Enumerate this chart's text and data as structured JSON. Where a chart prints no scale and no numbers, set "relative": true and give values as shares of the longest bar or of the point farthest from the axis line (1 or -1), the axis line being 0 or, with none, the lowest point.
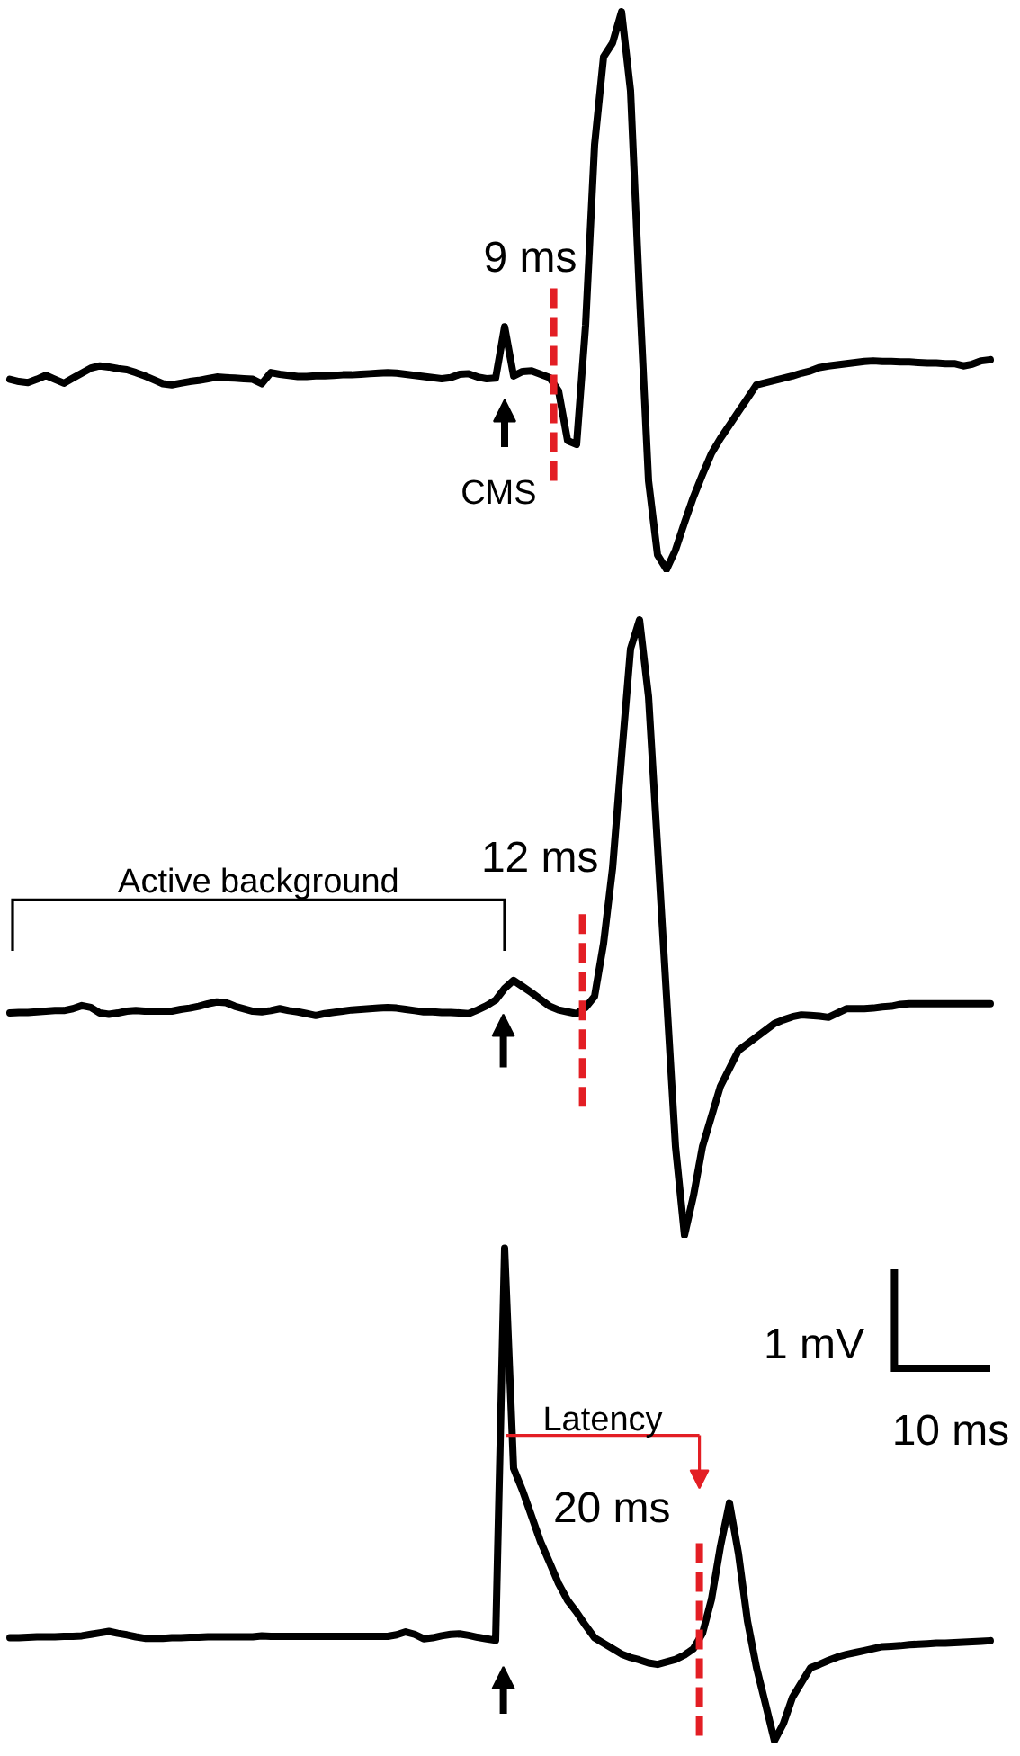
{
  "chart_data": [
    {
      "type": "line",
      "relative": true,
      "color": "#000000",
      "categories": [
        null,
        null,
        null,
        null,
        null,
        null,
        null,
        null,
        null,
        null,
        null,
        null,
        null,
        null,
        null,
        null,
        null,
        null,
        null,
        null,
        null,
        null,
        null,
        null,
        null,
        null,
        null,
        null,
        null,
        null,
        null,
        null,
        null,
        null,
        null,
        null,
        null,
        null,
        null,
        null,
        null,
        null,
        null,
        null,
        null,
        null,
        null,
        null,
        null,
        null,
        null,
        null,
        null,
        null,
        null,
        null,
        null,
        null,
        null,
        null,
        null,
        null,
        null,
        null,
        null,
        null,
        null,
        null,
        null,
        null,
        null,
        null,
        null,
        null,
        null,
        null,
        null,
        null,
        null,
        null,
        null,
        null,
        null,
        null,
        null,
        null,
        null,
        null,
        null,
        null,
        null,
        null,
        null,
        null,
        null,
        null,
        null,
        null,
        null,
        null,
        null,
        null,
        null,
        null,
        null,
        null,
        null,
        null,
        null,
        null
      ],
      "values": [
        0.341,
        0.337,
        0.335,
        0.341,
        0.348,
        0.341,
        0.334,
        0.343,
        0.352,
        0.361,
        0.365,
        0.363,
        0.36,
        0.358,
        0.353,
        0.347,
        0.34,
        0.333,
        0.331,
        0.334,
        0.337,
        0.339,
        0.342,
        0.345,
        0.344,
        0.343,
        0.342,
        0.341,
        0.333,
        0.353,
        0.35,
        0.348,
        0.346,
        0.346,
        0.347,
        0.347,
        0.348,
        0.349,
        0.349,
        0.35,
        0.351,
        0.352,
        0.353,
        0.352,
        0.35,
        0.348,
        0.346,
        0.344,
        0.342,
        0.344,
        0.35,
        0.351,
        0.345,
        0.342,
        0.343,
        0.435,
        0.347,
        0.355,
        0.356,
        0.35,
        0.344,
        0.32,
        0.231,
        0.224,
        0.437,
        0.761,
        0.919,
        0.944,
        1.0,
        0.858,
        0.492,
        0.159,
        0.026,
        0.0,
        0.035,
        0.084,
        0.13,
        0.17,
        0.208,
        0.235,
        0.259,
        0.283,
        0.307,
        0.331,
        0.335,
        0.339,
        0.343,
        0.347,
        0.352,
        0.356,
        0.362,
        0.365,
        0.367,
        0.369,
        0.371,
        0.373,
        0.374,
        0.373,
        0.373,
        0.372,
        0.372,
        0.371,
        0.37,
        0.37,
        0.369,
        0.369,
        0.365,
        0.368,
        0.374,
        0.376
      ],
      "annotations": [
        "CMS"
      ],
      "ref_lines": [
        {
          "axis": "x",
          "label": "9 ms",
          "color": "#e31e24",
          "line_style": "dashed"
        }
      ]
    },
    {
      "type": "line",
      "relative": true,
      "color": "#000000",
      "categories": [
        null,
        null,
        null,
        null,
        null,
        null,
        null,
        null,
        null,
        null,
        null,
        null,
        null,
        null,
        null,
        null,
        null,
        null,
        null,
        null,
        null,
        null,
        null,
        null,
        null,
        null,
        null,
        null,
        null,
        null,
        null,
        null,
        null,
        null,
        null,
        null,
        null,
        null,
        null,
        null,
        null,
        null,
        null,
        null,
        null,
        null,
        null,
        null,
        null,
        null,
        null,
        null,
        null,
        null,
        null,
        null,
        null,
        null,
        null,
        null,
        null,
        null,
        null,
        null,
        null,
        null,
        null,
        null,
        null,
        null,
        null,
        null,
        null,
        null,
        null,
        null,
        null,
        null,
        null,
        null,
        null,
        null,
        null,
        null,
        null,
        null,
        null,
        null,
        null,
        null,
        null,
        null,
        null,
        null,
        null,
        null,
        null,
        null,
        null,
        null,
        null,
        null,
        null,
        null,
        null,
        null,
        null,
        null,
        null,
        null
      ],
      "values": [
        0.361,
        0.362,
        0.362,
        0.363,
        0.364,
        0.365,
        0.365,
        0.368,
        0.373,
        0.37,
        0.361,
        0.359,
        0.361,
        0.364,
        0.365,
        0.364,
        0.364,
        0.364,
        0.364,
        0.367,
        0.369,
        0.372,
        0.376,
        0.379,
        0.378,
        0.372,
        0.368,
        0.364,
        0.363,
        0.365,
        0.368,
        0.365,
        0.363,
        0.36,
        0.357,
        0.36,
        0.362,
        0.364,
        0.366,
        0.367,
        0.368,
        0.369,
        0.37,
        0.369,
        0.367,
        0.365,
        0.363,
        0.363,
        0.362,
        0.362,
        0.361,
        0.36,
        0.366,
        0.373,
        0.382,
        0.401,
        0.414,
        0.404,
        0.394,
        0.383,
        0.372,
        0.366,
        0.363,
        0.36,
        0.37,
        0.388,
        0.474,
        0.596,
        0.778,
        0.953,
        1.0,
        0.875,
        0.632,
        0.388,
        0.144,
        0.0,
        0.064,
        0.144,
        0.193,
        0.242,
        0.271,
        0.3,
        0.311,
        0.322,
        0.333,
        0.344,
        0.35,
        0.355,
        0.358,
        0.357,
        0.356,
        0.354,
        0.361,
        0.368,
        0.368,
        0.368,
        0.369,
        0.371,
        0.372,
        0.375,
        0.376,
        0.376,
        0.376,
        0.376,
        0.376,
        0.376,
        0.376,
        0.376,
        0.376,
        0.376
      ],
      "annotations": [
        "Active background"
      ],
      "ref_lines": [
        {
          "axis": "x",
          "label": "12 ms",
          "color": "#e31e24",
          "line_style": "dashed"
        }
      ]
    },
    {
      "type": "line",
      "relative": true,
      "color": "#000000",
      "categories": [
        null,
        null,
        null,
        null,
        null,
        null,
        null,
        null,
        null,
        null,
        null,
        null,
        null,
        null,
        null,
        null,
        null,
        null,
        null,
        null,
        null,
        null,
        null,
        null,
        null,
        null,
        null,
        null,
        null,
        null,
        null,
        null,
        null,
        null,
        null,
        null,
        null,
        null,
        null,
        null,
        null,
        null,
        null,
        null,
        null,
        null,
        null,
        null,
        null,
        null,
        null,
        null,
        null,
        null,
        null,
        null,
        null,
        null,
        null,
        null,
        null,
        null,
        null,
        null,
        null,
        null,
        null,
        null,
        null,
        null,
        null,
        null,
        null,
        null,
        null,
        null,
        null,
        null,
        null,
        null,
        null,
        null,
        null,
        null,
        null,
        null,
        null,
        null,
        null,
        null,
        null,
        null,
        null,
        null,
        null,
        null,
        null,
        null,
        null,
        null,
        null,
        null,
        null,
        null,
        null,
        null,
        null,
        null,
        null,
        null
      ],
      "values": [
        0.209,
        0.209,
        0.21,
        0.211,
        0.211,
        0.211,
        0.212,
        0.212,
        0.213,
        0.216,
        0.219,
        0.222,
        0.218,
        0.215,
        0.211,
        0.208,
        0.208,
        0.208,
        0.209,
        0.209,
        0.21,
        0.21,
        0.211,
        0.211,
        0.211,
        0.211,
        0.211,
        0.211,
        0.213,
        0.212,
        0.212,
        0.212,
        0.212,
        0.212,
        0.212,
        0.212,
        0.212,
        0.212,
        0.212,
        0.212,
        0.212,
        0.212,
        0.212,
        0.215,
        0.221,
        0.216,
        0.207,
        0.209,
        0.213,
        0.216,
        0.217,
        0.214,
        0.21,
        0.207,
        0.204,
        1.0,
        0.553,
        0.508,
        0.456,
        0.404,
        0.362,
        0.319,
        0.285,
        0.261,
        0.234,
        0.209,
        0.198,
        0.187,
        0.176,
        0.169,
        0.164,
        0.158,
        0.155,
        0.16,
        0.165,
        0.174,
        0.187,
        0.218,
        0.287,
        0.395,
        0.483,
        0.38,
        0.243,
        0.149,
        0.075,
        0.0,
        0.035,
        0.088,
        0.118,
        0.148,
        0.155,
        0.163,
        0.17,
        0.175,
        0.179,
        0.183,
        0.187,
        0.191,
        0.192,
        0.193,
        0.195,
        0.196,
        0.197,
        0.198,
        0.198,
        0.199,
        0.2,
        0.201,
        0.202,
        0.203
      ],
      "annotations": [
        "Latency",
        "1 mV",
        "10 ms"
      ],
      "ref_lines": [
        {
          "axis": "x",
          "label": "20 ms",
          "color": "#e31e24",
          "line_style": "dashed"
        }
      ]
    }
  ]
}
